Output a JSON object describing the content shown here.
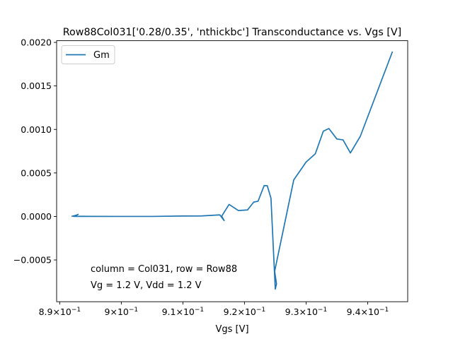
{
  "chart_data": {
    "type": "line",
    "title": "Row88Col031['0.28/0.35', 'nthickbc'] Transconductance vs. Vgs [V]",
    "xlabel": "Vgs [V]",
    "ylabel": "",
    "xlim": [
      0.8895,
      0.9465
    ],
    "ylim": [
      -0.00098,
      0.00202
    ],
    "grid": false,
    "legend_position": "upper-left",
    "x_ticks": [
      {
        "value": 0.89,
        "mantissa": "8.9",
        "base": "10",
        "exponent": "−1"
      },
      {
        "value": 0.9,
        "mantissa": "9",
        "base": "10",
        "exponent": "−1"
      },
      {
        "value": 0.91,
        "mantissa": "9.1",
        "base": "10",
        "exponent": "−1"
      },
      {
        "value": 0.92,
        "mantissa": "9.2",
        "base": "10",
        "exponent": "−1"
      },
      {
        "value": 0.93,
        "mantissa": "9.3",
        "base": "10",
        "exponent": "−1"
      },
      {
        "value": 0.94,
        "mantissa": "9.4",
        "base": "10",
        "exponent": "−1"
      }
    ],
    "y_ticks": [
      {
        "value": -0.0005,
        "label": "−0.0005"
      },
      {
        "value": 0.0,
        "label": "0.0000"
      },
      {
        "value": 0.0005,
        "label": "0.0005"
      },
      {
        "value": 0.001,
        "label": "0.0010"
      },
      {
        "value": 0.0015,
        "label": "0.0015"
      },
      {
        "value": 0.002,
        "label": "0.0020"
      }
    ],
    "annotations": [
      "column = Col031, row = Row88",
      "Vg = 1.2 V, Vdd = 1.2 V"
    ],
    "series": [
      {
        "name": "Gm",
        "color": "#1f77b4",
        "x": [
          0.892,
          0.8925,
          0.893,
          0.8923,
          0.8935,
          0.895,
          0.9,
          0.905,
          0.91,
          0.913,
          0.916,
          0.9165,
          0.9167,
          0.9163,
          0.9175,
          0.919,
          0.9205,
          0.9215,
          0.9222,
          0.9232,
          0.9237,
          0.9243,
          0.925,
          0.9252,
          0.9249,
          0.928,
          0.93,
          0.9315,
          0.9328,
          0.9337,
          0.935,
          0.936,
          0.9372,
          0.9388,
          0.944
        ],
        "y": [
          2e-06,
          1e-05,
          2.3e-05,
          0.0,
          2e-06,
          1e-06,
          0.0,
          0.0,
          5e-06,
          6e-06,
          1.8e-05,
          -3e-05,
          -4.8e-05,
          3e-06,
          0.000138,
          6.8e-05,
          7.5e-05,
          0.000165,
          0.000175,
          0.000355,
          0.000353,
          0.00021,
          -0.000835,
          -0.000775,
          -0.00063,
          0.00042,
          0.000625,
          0.00072,
          0.00098,
          0.00101,
          0.00089,
          0.00088,
          0.00073,
          0.00092,
          0.00189
        ]
      }
    ]
  }
}
